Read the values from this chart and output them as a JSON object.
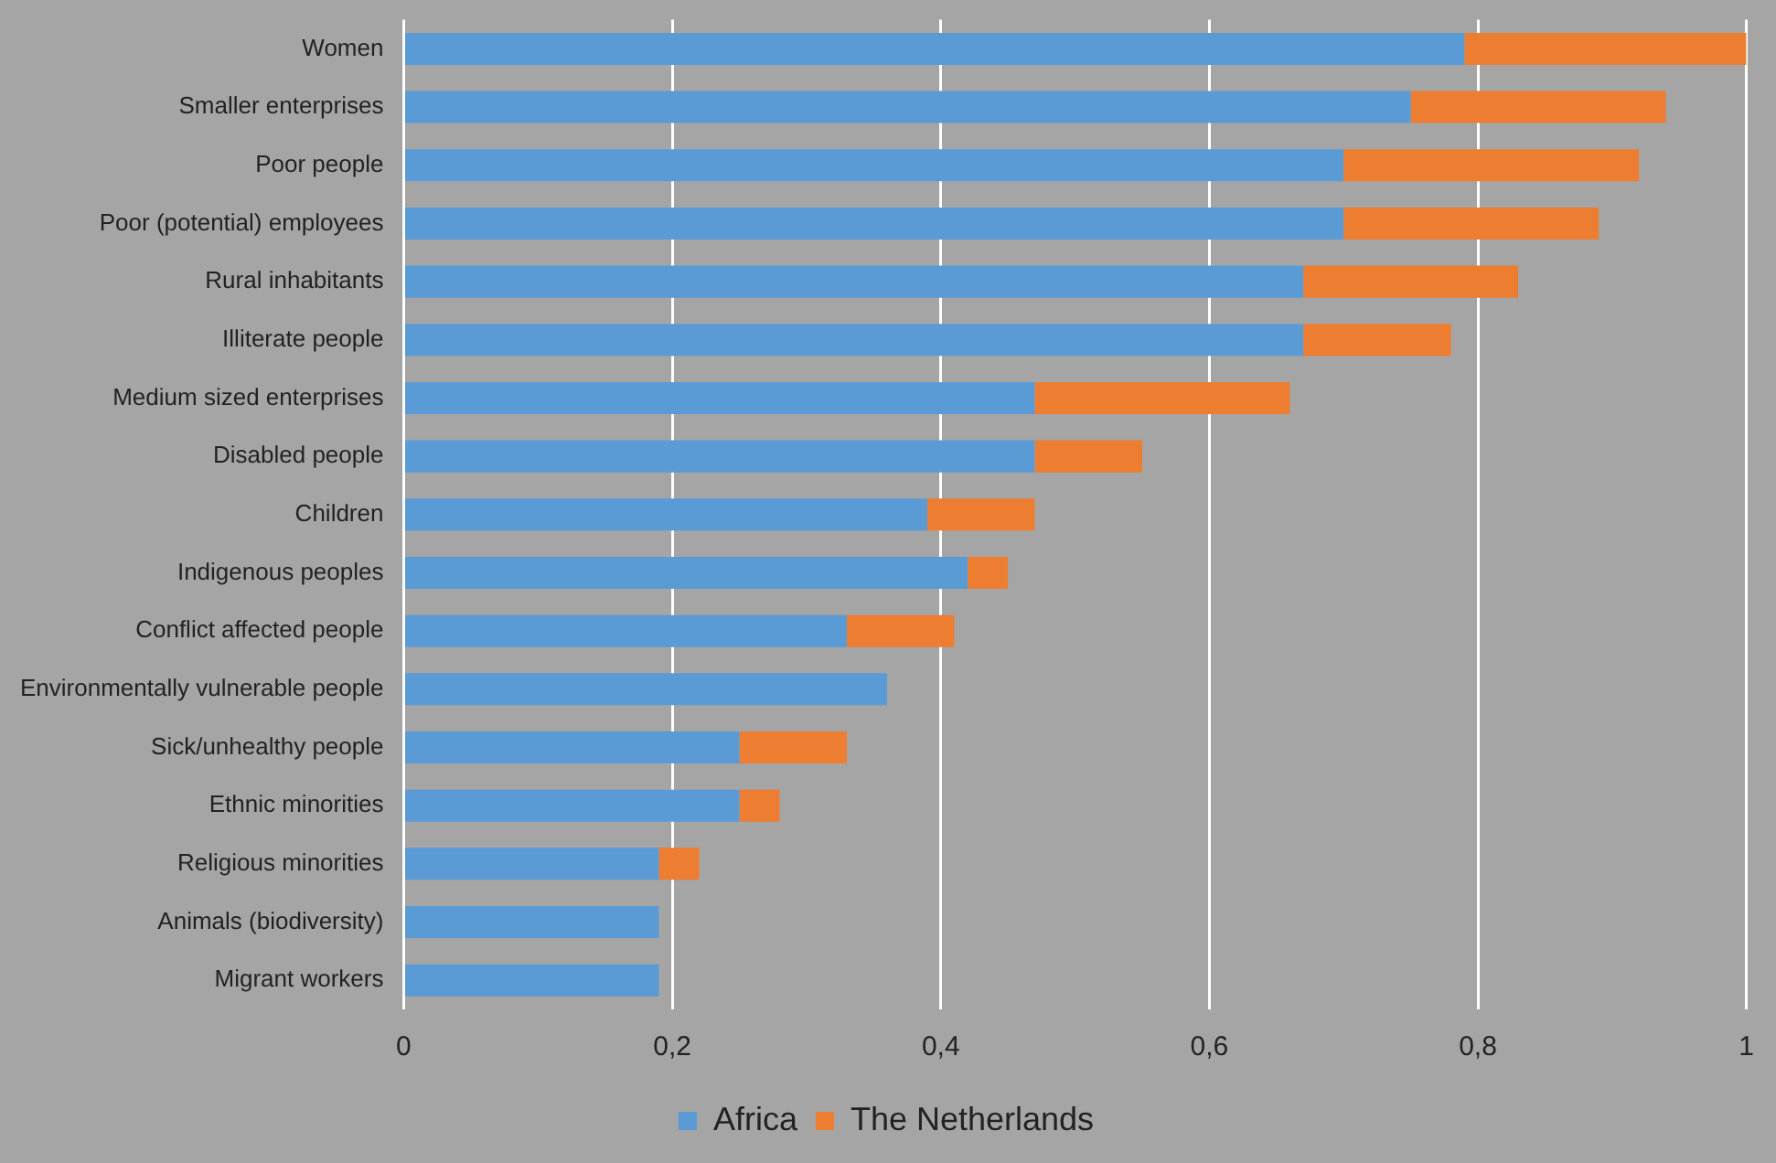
{
  "chart_data": {
    "type": "bar",
    "orientation": "horizontal",
    "stacked": true,
    "categories": [
      "Women",
      "Smaller enterprises",
      "Poor people",
      "Poor (potential) employees",
      "Rural inhabitants",
      "Illiterate people",
      "Medium sized enterprises",
      "Disabled people",
      "Children",
      "Indigenous peoples",
      "Conflict affected people",
      "Environmentally vulnerable people",
      "Sick/unhealthy people",
      "Ethnic minorities",
      "Religious minorities",
      "Animals (biodiversity)",
      "Migrant workers"
    ],
    "series": [
      {
        "name": "Africa",
        "color": "#5b9bd5",
        "values": [
          0.79,
          0.75,
          0.7,
          0.7,
          0.67,
          0.67,
          0.47,
          0.47,
          0.39,
          0.42,
          0.33,
          0.36,
          0.25,
          0.25,
          0.19,
          0.19,
          0.19
        ]
      },
      {
        "name": "The Netherlands",
        "color": "#ed7d31",
        "values": [
          0.21,
          0.19,
          0.22,
          0.19,
          0.16,
          0.11,
          0.19,
          0.08,
          0.08,
          0.03,
          0.08,
          0,
          0.08,
          0.03,
          0.03,
          0,
          0
        ]
      }
    ],
    "xlim": [
      0,
      1
    ],
    "xticks": [
      0,
      {
        "value": 0.2,
        "label": "0,2"
      },
      {
        "value": 0.4,
        "label": "0,4"
      },
      {
        "value": 0.6,
        "label": "0,6"
      },
      {
        "value": 0.8,
        "label": "0,8"
      },
      1
    ],
    "grid": "x",
    "legend": "bottom"
  }
}
